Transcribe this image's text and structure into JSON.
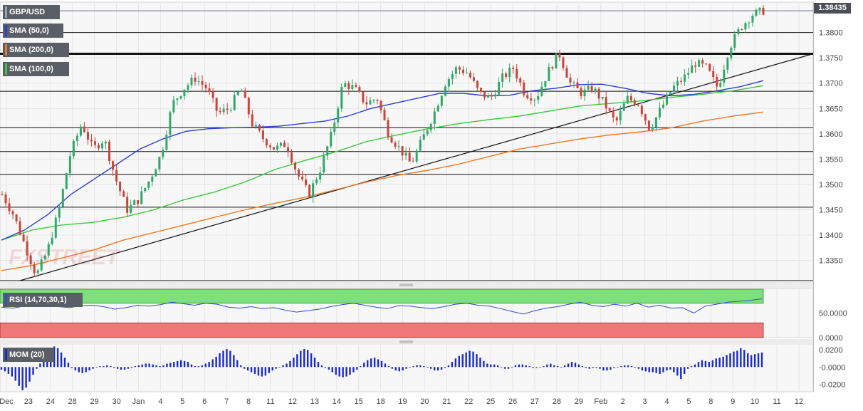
{
  "header": {
    "symbol": "GBP/USD",
    "last_price": "1.38435",
    "watermark": "FXSTREET"
  },
  "indicators": {
    "sma50": {
      "label": "SMA (50,0)",
      "color": "#2a3fd6"
    },
    "sma200": {
      "label": "SMA (200,0)",
      "color": "#f07820"
    },
    "sma100": {
      "label": "SMA (100,0)",
      "color": "#3cc83c"
    },
    "rsi": {
      "label": "RSI (14,70,30,1)",
      "color": "#3050c8"
    },
    "mom": {
      "label": "MOM (20)",
      "color": "#1a2acc"
    }
  },
  "chart_data": [
    {
      "type": "candlestick",
      "series_name": "GBP/USD",
      "yticks": [
        "1.3800",
        "1.3750",
        "1.3700",
        "1.3650",
        "1.3600",
        "1.3550",
        "1.3500",
        "1.3450",
        "1.3400",
        "1.3350"
      ],
      "ylim": [
        1.331,
        1.386
      ],
      "xticks": [
        "Dec",
        "23",
        "24",
        "28",
        "29",
        "30",
        "Jan",
        "4",
        "5",
        "6",
        "7",
        "8",
        "11",
        "12",
        "13",
        "14",
        "15",
        "18",
        "19",
        "20",
        "21",
        "22",
        "25",
        "26",
        "27",
        "28",
        "29",
        "Feb",
        "2",
        "3",
        "4",
        "5",
        "8",
        "9",
        "10",
        "11",
        "12"
      ],
      "horizontal_levels": [
        1.3843,
        1.38,
        1.3758,
        1.3684,
        1.3612,
        1.3565,
        1.352,
        1.3455,
        1.331
      ],
      "trendline": {
        "from": [
          0,
          1.331
        ],
        "to": [
          1,
          1.3758
        ]
      },
      "close_path": [
        1.348,
        1.344,
        1.338,
        1.332,
        1.337,
        1.345,
        1.356,
        1.362,
        1.357,
        1.359,
        1.351,
        1.345,
        1.347,
        1.351,
        1.356,
        1.366,
        1.369,
        1.371,
        1.369,
        1.364,
        1.365,
        1.369,
        1.362,
        1.359,
        1.357,
        1.358,
        1.352,
        1.348,
        1.353,
        1.36,
        1.37,
        1.369,
        1.366,
        1.367,
        1.36,
        1.357,
        1.354,
        1.359,
        1.364,
        1.37,
        1.373,
        1.372,
        1.368,
        1.367,
        1.371,
        1.373,
        1.368,
        1.367,
        1.372,
        1.376,
        1.37,
        1.368,
        1.369,
        1.366,
        1.362,
        1.367,
        1.366,
        1.361,
        1.365,
        1.369,
        1.371,
        1.374,
        1.373,
        1.369,
        1.377,
        1.381,
        1.3835,
        1.3843
      ],
      "sma50_path": [
        1.339,
        1.341,
        1.344,
        1.348,
        1.351,
        1.354,
        1.357,
        1.359,
        1.3605,
        1.361,
        1.3612,
        1.3613,
        1.3615,
        1.362,
        1.3625,
        1.3635,
        1.365,
        1.366,
        1.367,
        1.368,
        1.368,
        1.3675,
        1.3676,
        1.3685,
        1.369,
        1.3697,
        1.3698,
        1.369,
        1.368,
        1.3675,
        1.3678,
        1.3685,
        1.3693,
        1.3705
      ],
      "sma200_path": [
        1.333,
        1.334,
        1.3355,
        1.337,
        1.339,
        1.3405,
        1.342,
        1.3435,
        1.345,
        1.3463,
        1.3475,
        1.349,
        1.3505,
        1.3518,
        1.3528,
        1.354,
        1.3555,
        1.357,
        1.358,
        1.359,
        1.3598,
        1.3604,
        1.3612,
        1.3625,
        1.3635,
        1.3643
      ],
      "sma100_path": [
        1.339,
        1.341,
        1.342,
        1.3425,
        1.3435,
        1.345,
        1.347,
        1.3485,
        1.3505,
        1.353,
        1.3548,
        1.3565,
        1.3585,
        1.3598,
        1.361,
        1.362,
        1.3628,
        1.3635,
        1.3645,
        1.3655,
        1.366,
        1.3665,
        1.3672,
        1.3678,
        1.3685,
        1.3695
      ]
    },
    {
      "type": "line",
      "series_name": "RSI (14,70,30,1)",
      "yticks": [
        "50.0000",
        "0.0000"
      ],
      "levels": [
        70,
        30
      ],
      "values": [
        62,
        60,
        64,
        70,
        68,
        63,
        61,
        65,
        66,
        63,
        58,
        61,
        66,
        64,
        67,
        72,
        69,
        66,
        70,
        68,
        62,
        60,
        63,
        59,
        61,
        56,
        52,
        55,
        58,
        63,
        67,
        70,
        66,
        62,
        59,
        65,
        64,
        61,
        59,
        63,
        68,
        70,
        66,
        64,
        59,
        53,
        48,
        55,
        60,
        63,
        68,
        72,
        66,
        63,
        68,
        64,
        70,
        62,
        66,
        60,
        61,
        50,
        64,
        68,
        72,
        74,
        76,
        79
      ]
    },
    {
      "type": "bar",
      "series_name": "MOM (20)",
      "yticks": [
        "0.0200",
        "-0.0000",
        "-0.0200"
      ],
      "ylim": [
        -0.028,
        0.026
      ],
      "values": [
        -0.003,
        -0.005,
        -0.008,
        -0.011,
        -0.016,
        -0.022,
        -0.027,
        -0.024,
        -0.017,
        -0.009,
        -0.002,
        0.004,
        0.01,
        0.016,
        0.021,
        0.024,
        0.022,
        0.017,
        0.011,
        0.005,
        -0.001,
        -0.004,
        -0.006,
        -0.007,
        -0.006,
        -0.004,
        -0.002,
        0.0,
        0.001,
        0.001,
        0.002,
        0.001,
        -0.001,
        -0.002,
        -0.003,
        -0.003,
        -0.002,
        -0.001,
        0.001,
        0.002,
        0.003,
        0.004,
        0.004,
        0.003,
        0.002,
        0.001,
        0.002,
        0.004,
        0.005,
        0.006,
        0.007,
        0.008,
        0.007,
        0.006,
        0.003,
        0.001,
        0.001,
        0.002,
        0.004,
        0.006,
        0.009,
        0.012,
        0.016,
        0.019,
        0.021,
        0.019,
        0.014,
        0.008,
        0.002,
        -0.002,
        -0.004,
        -0.006,
        -0.008,
        -0.01,
        -0.011,
        -0.01,
        -0.007,
        -0.004,
        -0.002,
        0.0,
        0.002,
        0.004,
        0.007,
        0.011,
        0.015,
        0.019,
        0.021,
        0.02,
        0.016,
        0.011,
        0.006,
        0.002,
        -0.001,
        -0.003,
        -0.006,
        -0.009,
        -0.011,
        -0.012,
        -0.011,
        -0.009,
        -0.006,
        -0.003,
        0.001,
        0.005,
        0.008,
        0.01,
        0.011,
        0.009,
        0.007,
        0.004,
        0.001,
        -0.002,
        -0.004,
        -0.005,
        -0.004,
        -0.002,
        0.0,
        0.001,
        0.002,
        0.002,
        0.001,
        0.0,
        -0.002,
        -0.004,
        -0.004,
        -0.003,
        -0.001,
        0.002,
        0.006,
        0.01,
        0.013,
        0.015,
        0.017,
        0.019,
        0.018,
        0.015,
        0.011,
        0.007,
        0.004,
        0.003,
        0.003,
        0.002,
        0.0,
        -0.002,
        -0.002,
        0.0,
        0.002,
        0.003,
        0.003,
        0.002,
        0.001,
        -0.001,
        -0.001,
        0.0,
        0.001,
        0.003,
        0.004,
        0.002,
        0.001,
        0.0,
        0.002,
        0.004,
        0.006,
        0.005,
        0.003,
        0.001,
        -0.001,
        -0.002,
        -0.001,
        -0.001,
        -0.002,
        -0.004,
        -0.004,
        -0.003,
        -0.001,
        0.0,
        0.001,
        0.002,
        0.002,
        0.001,
        0.0,
        -0.002,
        -0.004,
        -0.005,
        -0.006,
        -0.006,
        -0.007,
        -0.008,
        -0.006,
        -0.004,
        -0.003,
        -0.006,
        -0.01,
        -0.014,
        -0.008,
        -0.002,
        0.001,
        0.003,
        0.006,
        0.008,
        0.007,
        0.006,
        0.008,
        0.01,
        0.011,
        0.012,
        0.014,
        0.016,
        0.018,
        0.019,
        0.022,
        0.02,
        0.016,
        0.014,
        0.015,
        0.016,
        0.017
      ]
    }
  ]
}
